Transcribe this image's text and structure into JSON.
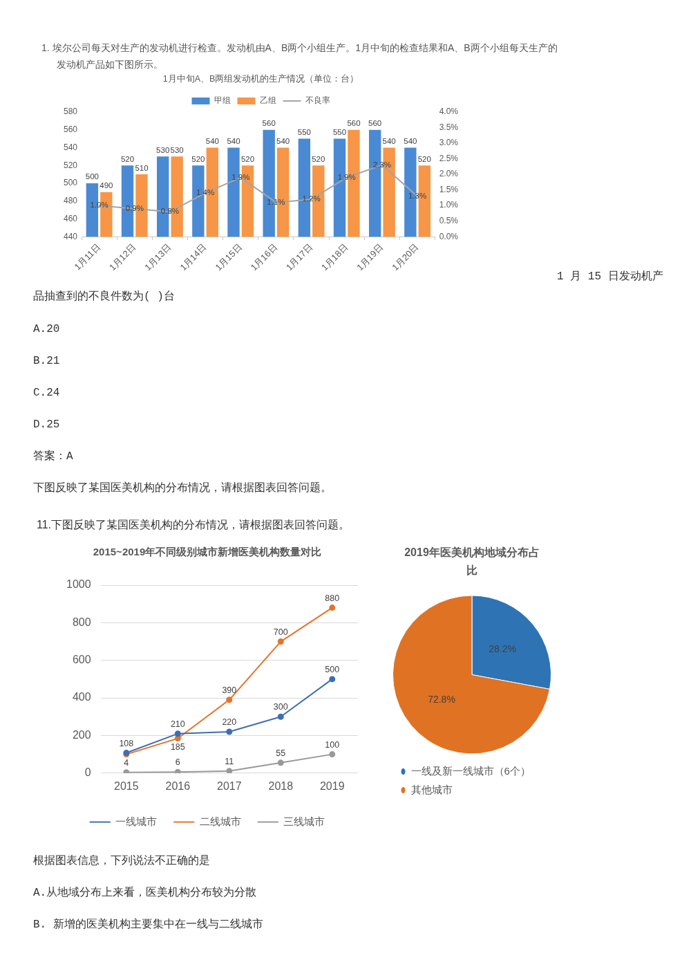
{
  "chart_data": [
    {
      "type": "bar",
      "title": "1月中旬A、B两组发动机的生产情况（单位：台）",
      "categories": [
        "1月11日",
        "1月12日",
        "1月13日",
        "1月14日",
        "1月15日",
        "1月16日",
        "1月17日",
        "1月18日",
        "1月19日",
        "1月20日"
      ],
      "series": [
        {
          "name": "甲组",
          "color": "#4a8ad4",
          "values": [
            500,
            520,
            530,
            520,
            540,
            560,
            550,
            550,
            560,
            540
          ],
          "value_labels": [
            "500",
            "520",
            "530",
            "520",
            "540",
            "560",
            "550",
            "550",
            "560",
            "540"
          ]
        },
        {
          "name": "乙组",
          "color": "#f79646",
          "values": [
            490,
            510,
            530,
            540,
            520,
            540,
            520,
            560,
            540,
            520
          ],
          "value_labels": [
            "490",
            "510",
            "530",
            "540",
            "520",
            "540",
            "520",
            "560",
            "540",
            "520"
          ]
        },
        {
          "name": "不良率",
          "type": "line",
          "axis": "y2",
          "color": "#a5a5a5",
          "values": [
            1.0,
            0.9,
            0.8,
            1.4,
            1.9,
            1.1,
            1.2,
            1.9,
            2.3,
            1.3
          ],
          "value_labels": [
            "1.0%",
            "0.9%",
            "0.8%",
            "1.4%",
            "1.9%",
            "1.1%",
            "1.2%",
            "1.9%",
            "2.3%",
            "1.3%"
          ]
        }
      ],
      "ylim": [
        440,
        580
      ],
      "yticks": [
        440,
        460,
        480,
        500,
        520,
        540,
        560,
        580
      ],
      "y2lim": [
        0,
        4
      ],
      "y2ticks": [
        {
          "value": 0,
          "label": "0.0%"
        },
        {
          "value": 0.5,
          "label": "0.5%"
        },
        {
          "value": 1,
          "label": "1.0%"
        },
        {
          "value": 1.5,
          "label": "1.5%"
        },
        {
          "value": 2,
          "label": "2.0%"
        },
        {
          "value": 2.5,
          "label": "2.5%"
        },
        {
          "value": 3,
          "label": "3.0%"
        },
        {
          "value": 3.5,
          "label": "3.5%"
        },
        {
          "value": 4,
          "label": "4.0%"
        }
      ],
      "grid": false,
      "legend": "top",
      "marker": "none",
      "annotations": [
        "1. 埃尔公司每天对生产的发动机进行检查。发动机由A、B两个小组生产。1月中旬的检查结果和A、B两个小组每天生产的发动机产品如下图所示。",
        "1 月 15 日发动机产品抽查到的不良件数为( )台",
        "A.20",
        "B.21",
        "C.24",
        "D.25",
        "答案：A"
      ]
    },
    {
      "type": "line",
      "title": "2015~2019年不同级别城市新增医美机构数量对比",
      "categories": [
        "2015",
        "2016",
        "2017",
        "2018",
        "2019"
      ],
      "series": [
        {
          "name": "一线城市",
          "color": "#3d6eb4",
          "values": [
            108,
            210,
            220,
            300,
            500
          ],
          "value_labels": [
            "108",
            "210",
            "220",
            "300",
            "500"
          ]
        },
        {
          "name": "二线城市",
          "color": "#e7722b",
          "values": [
            100,
            185,
            390,
            700,
            880
          ],
          "value_labels": [
            null,
            "185",
            "390",
            "700",
            "880"
          ]
        },
        {
          "name": "三线城市",
          "color": "#999999",
          "values": [
            4,
            6,
            11,
            55,
            100
          ],
          "value_labels": [
            "4",
            "6",
            "11",
            "55",
            "100"
          ]
        }
      ],
      "ylim": [
        0,
        1000
      ],
      "yticks": [
        0,
        200,
        400,
        600,
        800,
        1000
      ],
      "grid": "y",
      "legend": "bottom",
      "marker": "circle",
      "annotations": [
        "下图反映了某国医美机构的分布情况，请根据图表回答问题。",
        "11.下图反映了某国医美机构的分布情况，请根据图表回答问题。"
      ]
    },
    {
      "type": "pie",
      "title": "2019年医美机构地域分布占比",
      "categories": [
        "一线及新一线城市（6个）",
        "其他城市"
      ],
      "values": [
        28.2,
        72.8
      ],
      "colors": [
        "#2e74b5",
        "#e07224"
      ],
      "value_labels": [
        "28.2%",
        "72.8%"
      ],
      "legend": "bottom",
      "annotations": [
        "根据图表信息，下列说法不正确的是",
        "A.从地域分布上来看，医美机构分布较为分散",
        "B. 新增的医美机构主要集中在一线与二线城市"
      ]
    }
  ]
}
